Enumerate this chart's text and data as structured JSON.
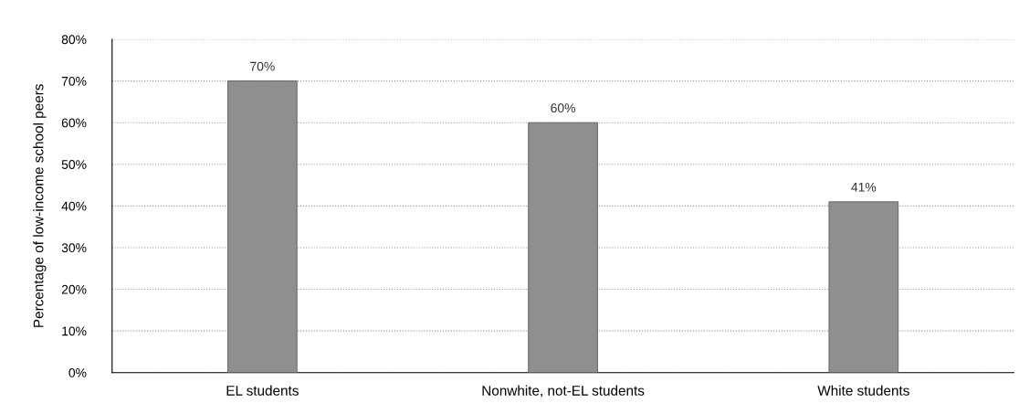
{
  "chart_data": {
    "type": "bar",
    "ylabel": "Percentage of low-income school peers",
    "categories": [
      "EL students",
      "Nonwhite, not-EL students",
      "White students"
    ],
    "values": [
      70,
      60,
      41
    ],
    "color": "#8f8f8f",
    "value_labels": [
      "70%",
      "60%",
      "41%"
    ],
    "ylim": [
      0,
      80
    ],
    "yticks": [
      {
        "value": 0,
        "label": "0%"
      },
      {
        "value": 10,
        "label": "10%"
      },
      {
        "value": 20,
        "label": "20%"
      },
      {
        "value": 30,
        "label": "30%"
      },
      {
        "value": 40,
        "label": "40%"
      },
      {
        "value": 50,
        "label": "50%"
      },
      {
        "value": 60,
        "label": "60%"
      },
      {
        "value": 70,
        "label": "70%"
      },
      {
        "value": 80,
        "label": "80%"
      }
    ],
    "grid": "y"
  }
}
